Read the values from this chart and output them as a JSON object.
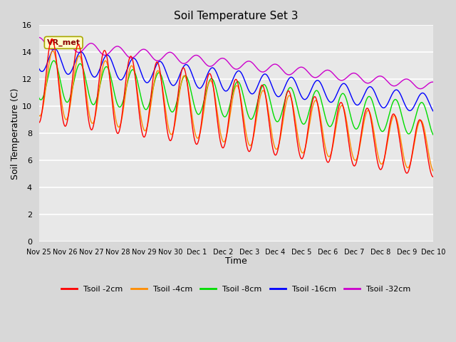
{
  "title": "Soil Temperature Set 3",
  "xlabel": "Time",
  "ylabel": "Soil Temperature (C)",
  "xlim": [
    0,
    15
  ],
  "ylim": [
    0,
    16
  ],
  "yticks": [
    0,
    2,
    4,
    6,
    8,
    10,
    12,
    14,
    16
  ],
  "xtick_labels": [
    "Nov 25",
    "Nov 26",
    "Nov 27",
    "Nov 28",
    "Nov 29",
    "Nov 30",
    "Dec 1",
    "Dec 2",
    "Dec 3",
    "Dec 4",
    "Dec 5",
    "Dec 6",
    "Dec 7",
    "Dec 8",
    "Dec 9",
    "Dec 10"
  ],
  "annotation_label": "VR_met",
  "colors": {
    "Tsoil -2cm": "#ff0000",
    "Tsoil -4cm": "#ff8c00",
    "Tsoil -8cm": "#00dd00",
    "Tsoil -16cm": "#0000ff",
    "Tsoil -32cm": "#cc00cc"
  },
  "fig_bg": "#d8d8d8",
  "plot_bg": "#e8e8e8",
  "grid_color": "#ffffff",
  "legend_labels": [
    "Tsoil -2cm",
    "Tsoil -4cm",
    "Tsoil -8cm",
    "Tsoil -16cm",
    "Tsoil -32cm"
  ],
  "figsize": [
    6.4,
    4.8
  ],
  "dpi": 100
}
